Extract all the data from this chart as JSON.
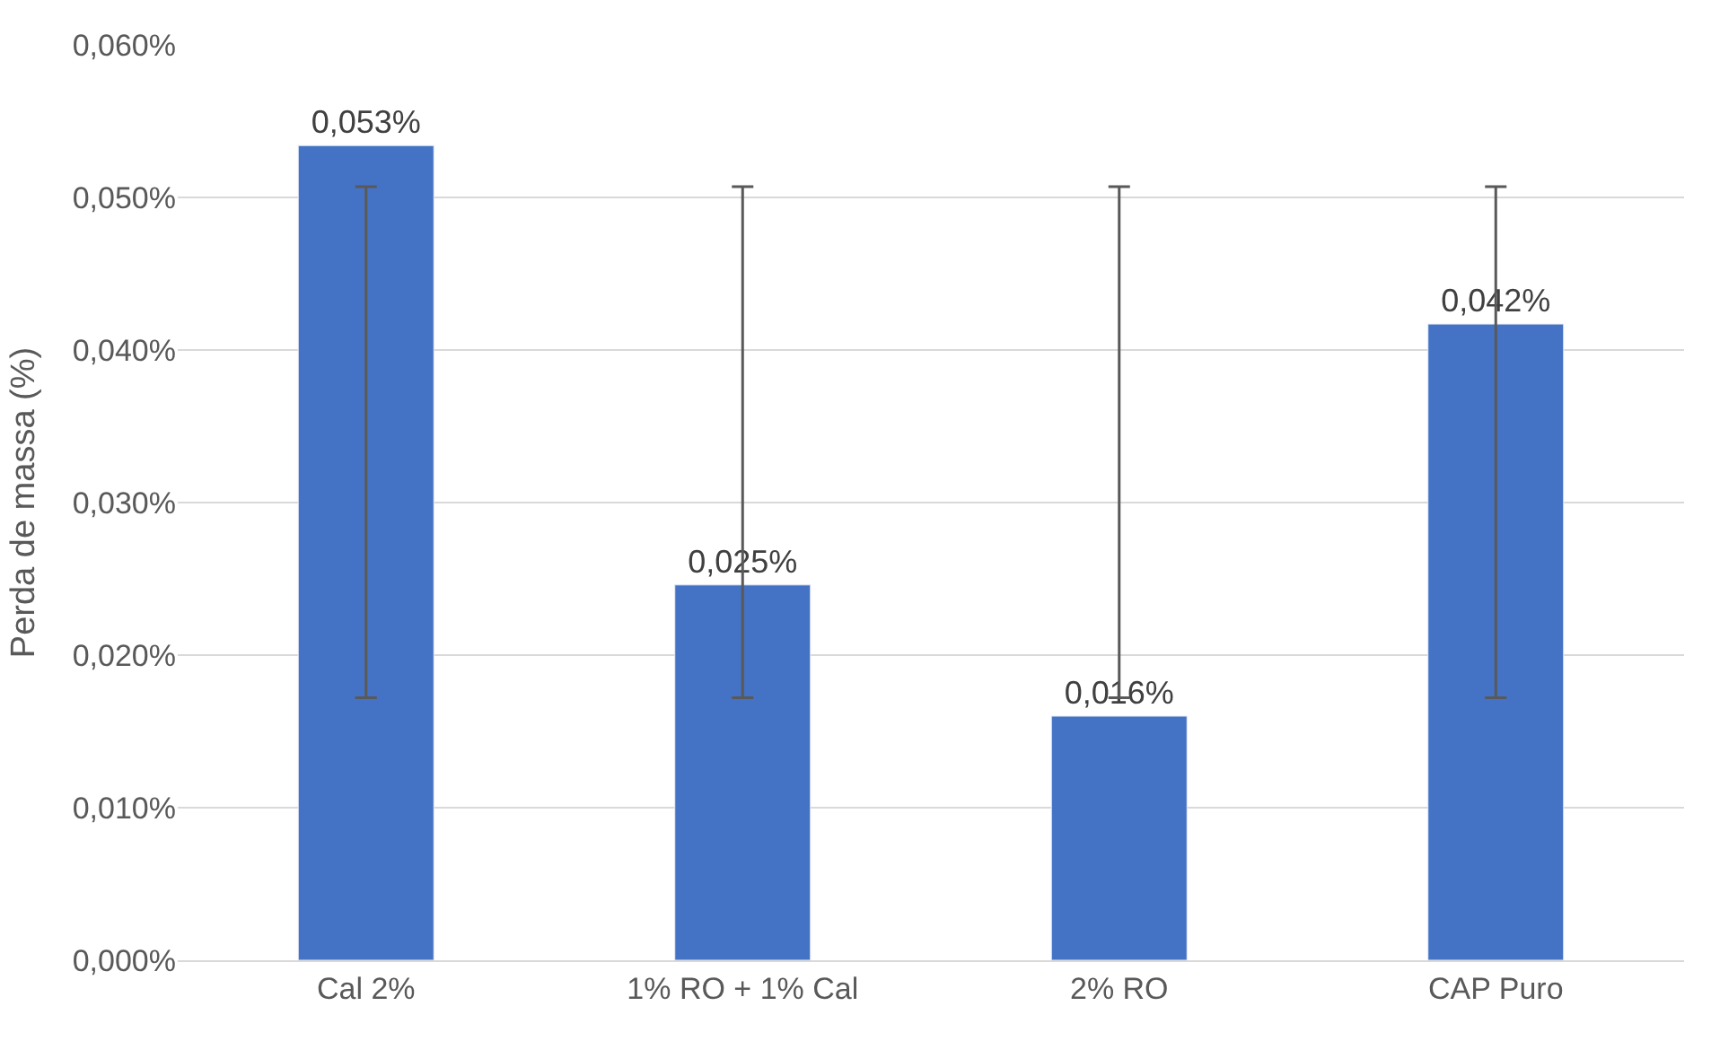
{
  "chart_data": {
    "type": "bar",
    "ylabel": "Perda de massa (%)",
    "categories": [
      "Cal 2%",
      "1% RO + 1% Cal",
      "2% RO",
      "CAP Puro"
    ],
    "values": [
      0.0534,
      0.0246,
      0.016,
      0.0417
    ],
    "color": "#4472c4",
    "value_labels": [
      "0,053%",
      "0,025%",
      "0,016%",
      "0,042%"
    ],
    "errors": [
      [
        0.0172,
        0.0507
      ],
      [
        0.0172,
        0.0507
      ],
      [
        0.0172,
        0.0507
      ],
      [
        0.0172,
        0.0507
      ]
    ],
    "ylim": [
      0,
      0.06
    ],
    "yticks": [
      {
        "value": 0,
        "label": "0,000%"
      },
      {
        "value": 0.01,
        "label": "0,010%"
      },
      {
        "value": 0.02,
        "label": "0,020%"
      },
      {
        "value": 0.03,
        "label": "0,030%"
      },
      {
        "value": 0.04,
        "label": "0,040%"
      },
      {
        "value": 0.05,
        "label": "0,050%"
      },
      {
        "value": 0.06,
        "label": "0,060%"
      }
    ],
    "grid": "y"
  }
}
